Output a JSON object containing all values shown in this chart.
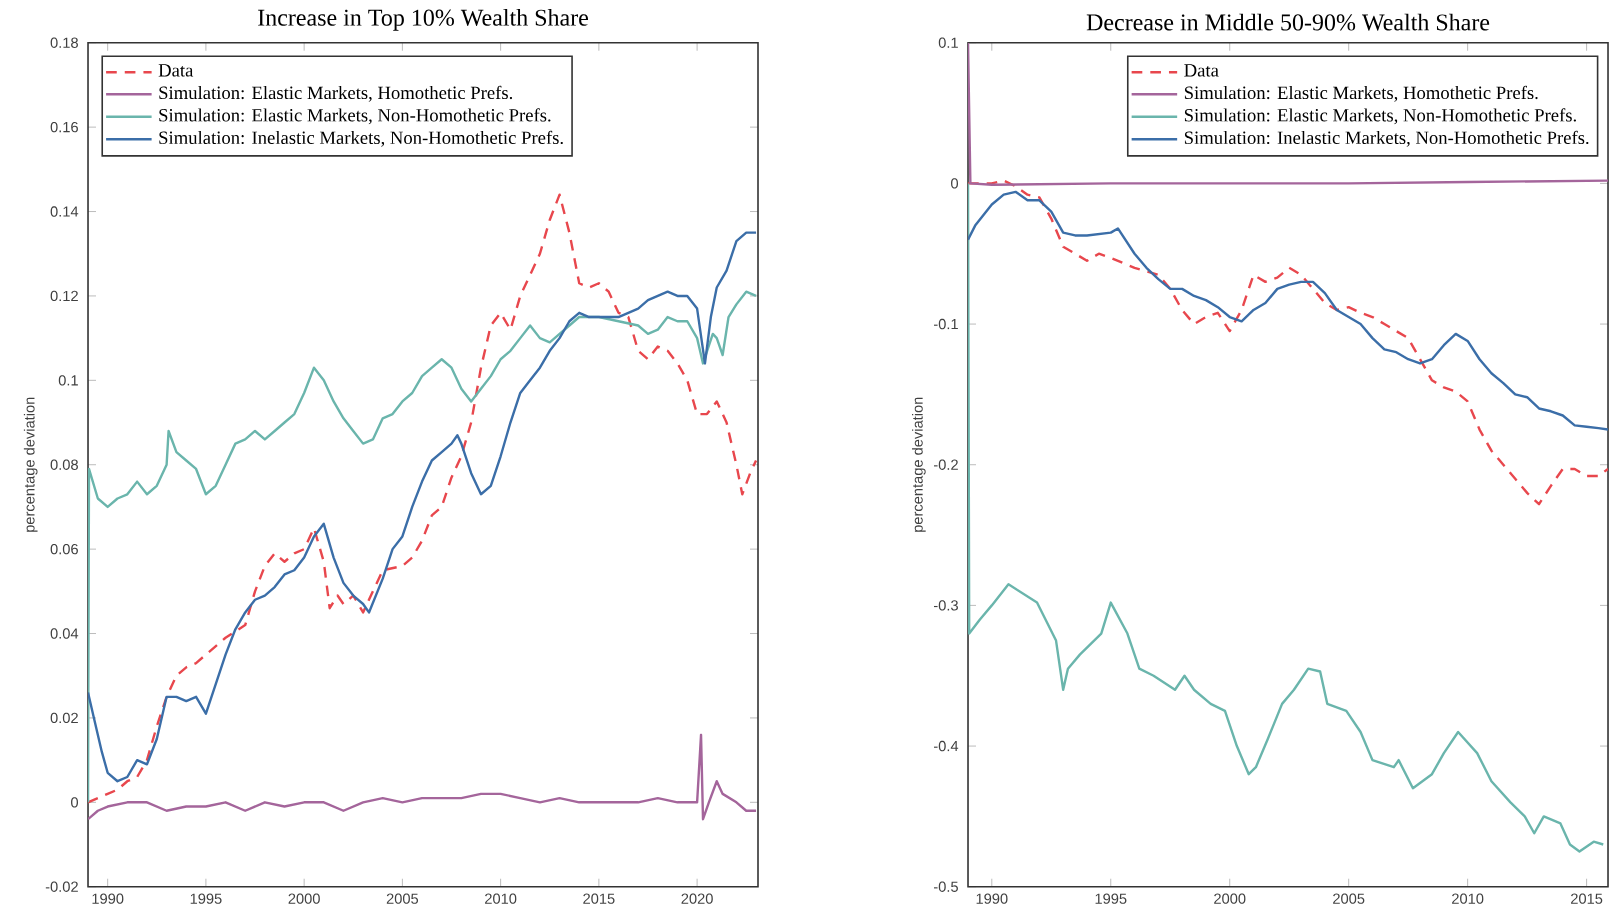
{
  "chart_data": [
    {
      "type": "line",
      "title": "Increase in Top 10% Wealth Share",
      "ylabel": "percentage deviation",
      "xlim": [
        1989,
        2023.1
      ],
      "ylim": [
        -0.02,
        0.18
      ],
      "xticks": [
        1990,
        1995,
        2000,
        2005,
        2010,
        2015,
        2020
      ],
      "yticks": [
        -0.02,
        0,
        0.02,
        0.04,
        0.06,
        0.08,
        0.1,
        0.12,
        0.14,
        0.16,
        0.18
      ],
      "legend": "top left",
      "marker": "none",
      "series": [
        {
          "name": "Data",
          "color": "#e8474d",
          "line_style": "dashed",
          "x": [
            1989,
            1990,
            1990.5,
            1991,
            1991.5,
            1992,
            1992.5,
            1993,
            1993.5,
            1994,
            1994.5,
            1995,
            1996,
            1997,
            1997.5,
            1998,
            1998.5,
            1999,
            1999.5,
            2000,
            2000.5,
            2001,
            2001.3,
            2001.7,
            2002,
            2002.5,
            2003,
            2003.5,
            2004,
            2005,
            2005.5,
            2006,
            2006.5,
            2007,
            2007.5,
            2008,
            2008.5,
            2009,
            2009.5,
            2010,
            2010.5,
            2011,
            2011.5,
            2012,
            2012.5,
            2013,
            2013.5,
            2014,
            2014.5,
            2015,
            2015.5,
            2016,
            2016.5,
            2017,
            2017.5,
            2018,
            2018.5,
            2019,
            2019.5,
            2020,
            2020.5,
            2021,
            2021.5,
            2022,
            2022.3,
            2022.7,
            2023
          ],
          "values": [
            0,
            0.002,
            0.003,
            0.005,
            0.006,
            0.01,
            0.018,
            0.025,
            0.03,
            0.032,
            0.033,
            0.035,
            0.039,
            0.042,
            0.05,
            0.056,
            0.059,
            0.057,
            0.059,
            0.06,
            0.065,
            0.057,
            0.046,
            0.049,
            0.047,
            0.049,
            0.045,
            0.05,
            0.055,
            0.056,
            0.058,
            0.062,
            0.068,
            0.07,
            0.077,
            0.082,
            0.09,
            0.103,
            0.113,
            0.116,
            0.112,
            0.12,
            0.125,
            0.13,
            0.138,
            0.144,
            0.135,
            0.123,
            0.122,
            0.123,
            0.121,
            0.116,
            0.115,
            0.107,
            0.105,
            0.108,
            0.107,
            0.104,
            0.1,
            0.092,
            0.092,
            0.095,
            0.09,
            0.08,
            0.073,
            0.078,
            0.081
          ]
        },
        {
          "name": "Simulation: Elastic Markets, Homothetic Prefs.",
          "color": "#a4659b",
          "line_style": "solid",
          "x": [
            1989,
            1989.5,
            1990,
            1991,
            1992,
            1993,
            1994,
            1995,
            1996,
            1997,
            1998,
            1999,
            2000,
            2001,
            2002,
            2003,
            2004,
            2005,
            2006,
            2007,
            2008,
            2009,
            2010,
            2011,
            2012,
            2013,
            2014,
            2015,
            2016,
            2017,
            2018,
            2019,
            2020,
            2020.2,
            2020.3,
            2020.6,
            2021,
            2021.3,
            2022,
            2022.5,
            2023
          ],
          "values": [
            -0.004,
            -0.002,
            -0.001,
            0,
            0,
            -0.002,
            -0.001,
            -0.001,
            0,
            -0.002,
            0,
            -0.001,
            0,
            0,
            -0.002,
            0,
            0.001,
            0,
            0.001,
            0.001,
            0.001,
            0.002,
            0.002,
            0.001,
            0,
            0.001,
            0,
            0,
            0,
            0,
            0.001,
            0,
            0,
            0.016,
            -0.004,
            0,
            0.005,
            0.002,
            0,
            -0.002,
            -0.002
          ]
        },
        {
          "name": "Simulation: Elastic Markets, Non-Homothetic Prefs.",
          "color": "#6ab5ac",
          "line_style": "solid",
          "x": [
            1989,
            1989.05,
            1989.5,
            1990,
            1990.5,
            1991,
            1991.5,
            1992,
            1992.5,
            1993,
            1993.1,
            1993.5,
            1994,
            1994.5,
            1995,
            1995.5,
            1996,
            1996.5,
            1997,
            1997.5,
            1998,
            1998.5,
            1999,
            1999.5,
            2000,
            2000.5,
            2001,
            2001.5,
            2002,
            2002.5,
            2003,
            2003.5,
            2004,
            2004.5,
            2005,
            2005.5,
            2006,
            2006.5,
            2007,
            2007.5,
            2008,
            2008.5,
            2009,
            2009.5,
            2010,
            2010.5,
            2011,
            2011.5,
            2012,
            2012.5,
            2013,
            2013.5,
            2014,
            2015,
            2016,
            2017,
            2017.5,
            2018,
            2018.5,
            2019,
            2019.5,
            2020,
            2020.3,
            2020.8,
            2021,
            2021.3,
            2021.6,
            2022,
            2022.5,
            2023
          ],
          "values": [
            0,
            0.079,
            0.072,
            0.07,
            0.072,
            0.073,
            0.076,
            0.073,
            0.075,
            0.08,
            0.088,
            0.083,
            0.081,
            0.079,
            0.073,
            0.075,
            0.08,
            0.085,
            0.086,
            0.088,
            0.086,
            0.088,
            0.09,
            0.092,
            0.097,
            0.103,
            0.1,
            0.095,
            0.091,
            0.088,
            0.085,
            0.086,
            0.091,
            0.092,
            0.095,
            0.097,
            0.101,
            0.103,
            0.105,
            0.103,
            0.098,
            0.095,
            0.098,
            0.101,
            0.105,
            0.107,
            0.11,
            0.113,
            0.11,
            0.109,
            0.111,
            0.113,
            0.115,
            0.115,
            0.114,
            0.113,
            0.111,
            0.112,
            0.115,
            0.114,
            0.114,
            0.11,
            0.104,
            0.111,
            0.11,
            0.106,
            0.115,
            0.118,
            0.121,
            0.12
          ]
        },
        {
          "name": "Simulation: Inelastic Markets, Non-Homothetic Prefs.",
          "color": "#3b6ea8",
          "line_style": "solid",
          "x": [
            1989,
            1989.3,
            1989.7,
            1990,
            1990.5,
            1991,
            1991.5,
            1992,
            1992.5,
            1993,
            1993.5,
            1994,
            1994.5,
            1995,
            1995.5,
            1996,
            1996.5,
            1997,
            1997.5,
            1998,
            1998.5,
            1999,
            1999.5,
            2000,
            2000.5,
            2001,
            2001.5,
            2002,
            2002.5,
            2003,
            2003.3,
            2004,
            2004.5,
            2005,
            2005.5,
            2006,
            2006.5,
            2007,
            2007.5,
            2007.8,
            2008,
            2008.5,
            2009,
            2009.5,
            2010,
            2010.5,
            2011,
            2011.5,
            2012,
            2012.5,
            2013,
            2013.5,
            2014,
            2014.5,
            2015,
            2016,
            2017,
            2017.5,
            2018,
            2018.5,
            2019,
            2019.5,
            2020,
            2020.4,
            2020.7,
            2021,
            2021.5,
            2022,
            2022.5,
            2023
          ],
          "values": [
            0.026,
            0.02,
            0.012,
            0.007,
            0.005,
            0.006,
            0.01,
            0.009,
            0.015,
            0.025,
            0.025,
            0.024,
            0.025,
            0.021,
            0.028,
            0.035,
            0.041,
            0.045,
            0.048,
            0.049,
            0.051,
            0.054,
            0.055,
            0.058,
            0.063,
            0.066,
            0.058,
            0.052,
            0.049,
            0.047,
            0.045,
            0.053,
            0.06,
            0.063,
            0.07,
            0.076,
            0.081,
            0.083,
            0.085,
            0.087,
            0.085,
            0.078,
            0.073,
            0.075,
            0.082,
            0.09,
            0.097,
            0.1,
            0.103,
            0.107,
            0.11,
            0.114,
            0.116,
            0.115,
            0.115,
            0.115,
            0.117,
            0.119,
            0.12,
            0.121,
            0.12,
            0.12,
            0.117,
            0.104,
            0.115,
            0.122,
            0.126,
            0.133,
            0.135,
            0.135
          ]
        }
      ]
    },
    {
      "type": "line",
      "title": "Decrease in Middle 50-90% Wealth Share",
      "ylabel": "percentage deviation",
      "xlim": [
        1989,
        2015.9
      ],
      "ylim": [
        -0.5,
        0.1
      ],
      "xticks": [
        1990,
        1995,
        2000,
        2005,
        2010,
        2015
      ],
      "yticks": [
        -0.5,
        -0.4,
        -0.3,
        -0.2,
        -0.1,
        0,
        0.1
      ],
      "legend": "top right",
      "marker": "none",
      "series": [
        {
          "name": "Data",
          "color": "#e8474d",
          "line_style": "dashed",
          "x": [
            1989,
            1990,
            1990.5,
            1991,
            1991.5,
            1992,
            1992.5,
            1993,
            1994,
            1994.5,
            1995,
            1996,
            1997,
            1997.5,
            1998,
            1998.5,
            1999,
            1999.5,
            2000,
            2000.5,
            2001,
            2001.5,
            2002,
            2002.5,
            2003,
            2003.5,
            2004,
            2004.5,
            2005,
            2005.5,
            2006,
            2006.5,
            2007,
            2007.5,
            2008,
            2008.5,
            2009,
            2009.5,
            2010,
            2010.5,
            2011,
            2011.5,
            2012,
            2012.5,
            2013,
            2013.5,
            2014,
            2014.5,
            2015,
            2015.5,
            2015.9
          ],
          "values": [
            0,
            0,
            0.002,
            -0.002,
            -0.008,
            -0.01,
            -0.025,
            -0.045,
            -0.055,
            -0.05,
            -0.053,
            -0.06,
            -0.065,
            -0.075,
            -0.09,
            -0.1,
            -0.095,
            -0.092,
            -0.105,
            -0.09,
            -0.065,
            -0.07,
            -0.067,
            -0.06,
            -0.065,
            -0.075,
            -0.085,
            -0.09,
            -0.088,
            -0.092,
            -0.095,
            -0.1,
            -0.105,
            -0.11,
            -0.125,
            -0.14,
            -0.145,
            -0.148,
            -0.155,
            -0.175,
            -0.19,
            -0.2,
            -0.21,
            -0.22,
            -0.228,
            -0.215,
            -0.203,
            -0.203,
            -0.208,
            -0.208,
            -0.203
          ]
        },
        {
          "name": "Simulation: Elastic Markets, Homothetic Prefs.",
          "color": "#a4659b",
          "line_style": "solid",
          "x": [
            1989,
            1989.1,
            1990,
            1995,
            2000,
            2005,
            2010,
            2015.9
          ],
          "values": [
            0.1,
            0,
            -0.001,
            0,
            0,
            0,
            0.001,
            0.002
          ]
        },
        {
          "name": "Simulation: Elastic Markets, Non-Homothetic Prefs.",
          "color": "#6ab5ac",
          "line_style": "solid",
          "x": [
            1989,
            1989.05,
            1989.5,
            1990,
            1990.7,
            1991.9,
            1992.7,
            1993,
            1993.2,
            1993.7,
            1994.6,
            1995,
            1995.7,
            1996.2,
            1996.8,
            1997.7,
            1998.1,
            1998.5,
            1999.2,
            1999.8,
            2000.3,
            2000.8,
            2001.1,
            2001.6,
            2002.2,
            2002.7,
            2003.3,
            2003.8,
            2004.1,
            2004.9,
            2005.5,
            2006,
            2006.9,
            2007.1,
            2007.7,
            2008.5,
            2009,
            2009.6,
            2010.4,
            2011,
            2011.8,
            2012.4,
            2012.8,
            2013.2,
            2013.9,
            2014.3,
            2014.7,
            2015.3,
            2015.7
          ],
          "values": [
            0,
            -0.32,
            -0.31,
            -0.3,
            -0.285,
            -0.298,
            -0.325,
            -0.36,
            -0.345,
            -0.335,
            -0.32,
            -0.298,
            -0.32,
            -0.345,
            -0.35,
            -0.36,
            -0.35,
            -0.36,
            -0.37,
            -0.375,
            -0.4,
            -0.42,
            -0.415,
            -0.395,
            -0.37,
            -0.36,
            -0.345,
            -0.347,
            -0.37,
            -0.375,
            -0.39,
            -0.41,
            -0.415,
            -0.41,
            -0.43,
            -0.42,
            -0.405,
            -0.39,
            -0.405,
            -0.425,
            -0.44,
            -0.45,
            -0.462,
            -0.45,
            -0.455,
            -0.47,
            -0.475,
            -0.468,
            -0.47
          ]
        },
        {
          "name": "Simulation: Inelastic Markets, Non-Homothetic Prefs.",
          "color": "#3b6ea8",
          "line_style": "solid",
          "x": [
            1989,
            1989.3,
            1990,
            1990.5,
            1991,
            1991.5,
            1992,
            1992.5,
            1993,
            1993.5,
            1994,
            1995,
            1995.3,
            1996,
            1996.5,
            1997,
            1997.5,
            1998,
            1998.5,
            1999,
            1999.5,
            2000,
            2000.5,
            2001,
            2001.5,
            2002,
            2002.5,
            2003,
            2003.5,
            2004,
            2004.5,
            2005,
            2005.5,
            2006,
            2006.5,
            2007,
            2007.5,
            2008,
            2008.5,
            2009,
            2009.5,
            2010,
            2010.5,
            2011,
            2011.5,
            2012,
            2012.5,
            2013,
            2013.5,
            2014,
            2014.5,
            2015,
            2015.5,
            2015.9
          ],
          "values": [
            -0.04,
            -0.03,
            -0.015,
            -0.008,
            -0.006,
            -0.012,
            -0.012,
            -0.02,
            -0.035,
            -0.037,
            -0.037,
            -0.035,
            -0.032,
            -0.05,
            -0.06,
            -0.068,
            -0.075,
            -0.075,
            -0.08,
            -0.083,
            -0.088,
            -0.095,
            -0.098,
            -0.09,
            -0.085,
            -0.075,
            -0.072,
            -0.07,
            -0.07,
            -0.078,
            -0.09,
            -0.095,
            -0.1,
            -0.11,
            -0.118,
            -0.12,
            -0.125,
            -0.128,
            -0.125,
            -0.115,
            -0.107,
            -0.112,
            -0.125,
            -0.135,
            -0.142,
            -0.15,
            -0.152,
            -0.16,
            -0.162,
            -0.165,
            -0.172,
            -0.173,
            -0.174,
            -0.175
          ]
        }
      ]
    }
  ]
}
